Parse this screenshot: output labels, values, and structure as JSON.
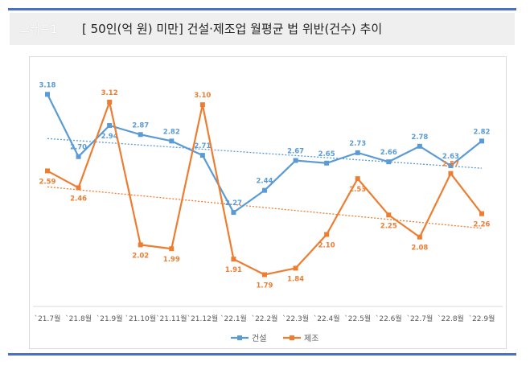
{
  "header": {
    "tag": "그래프1",
    "title": "[ 50인(억 원) 미만] 건설·제조업 월평균 법 위반(건수) 추이"
  },
  "colors": {
    "accent_rule": "#4a6fc7",
    "series_construction": "#5b9bd5",
    "series_manufacturing": "#ed7d31"
  },
  "chart_data": {
    "type": "line",
    "categories": [
      "`21.7월",
      "`21.8월",
      "`21.9월",
      "`21.10월",
      "`21.11월",
      "`21.12월",
      "`22.1월",
      "`22.2월",
      "`22.3월",
      "`22.4월",
      "`22.5월",
      "`22.6월",
      "`22.7월",
      "`22.8월",
      "`22.9월"
    ],
    "series": [
      {
        "name": "건설",
        "color": "#5b9bd5",
        "values": [
          3.18,
          2.7,
          2.94,
          2.87,
          2.82,
          2.71,
          2.27,
          2.44,
          2.67,
          2.65,
          2.73,
          2.66,
          2.78,
          2.63,
          2.82
        ],
        "labels": [
          "3.18",
          "2.70",
          "2.94",
          "2.87",
          "2.82",
          "2.71",
          "2.27",
          "2.44",
          "2.67",
          "2.65",
          "2.73",
          "2.66",
          "2.78",
          "2.63",
          "2.82"
        ]
      },
      {
        "name": "제조",
        "color": "#ed7d31",
        "values": [
          2.59,
          2.46,
          3.12,
          2.02,
          1.99,
          3.1,
          1.91,
          1.79,
          1.84,
          2.1,
          2.53,
          2.25,
          2.08,
          2.57,
          2.26
        ],
        "labels": [
          "2.59",
          "2.46",
          "3.12",
          "2.02",
          "1.99",
          "3.10",
          "1.91",
          "1.79",
          "1.84",
          "2.10",
          "2.53",
          "2.25",
          "2.08",
          "2.57",
          "2.26"
        ]
      }
    ],
    "trendlines": "linear (dotted), one per series",
    "legend": "bottom-center",
    "grid": false
  }
}
